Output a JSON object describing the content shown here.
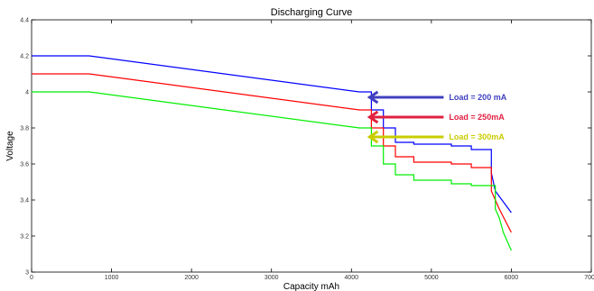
{
  "chart_data": {
    "type": "line",
    "title": "Discharging Curve",
    "xlabel": "Capacity mAh",
    "ylabel": "Voltage",
    "xlim": [
      0,
      7000
    ],
    "ylim": [
      3,
      4.4
    ],
    "xticks": [
      0,
      1000,
      2000,
      3000,
      4000,
      5000,
      6000,
      7000
    ],
    "yticks": [
      3,
      3.2,
      3.4,
      3.6,
      3.8,
      4,
      4.2,
      4.4
    ],
    "xtick_labels": [
      "0",
      "1000",
      "2000",
      "3000",
      "4000",
      "5000",
      "6000",
      "7000"
    ],
    "ytick_labels": [
      "3",
      "3.2",
      "3.4",
      "3.6",
      "3.8",
      "4",
      "4.2",
      "4.4"
    ],
    "grid": false,
    "series": [
      {
        "color": "#0000ff",
        "x": [
          0,
          720,
          4100,
          4250,
          4250,
          4400,
          4400,
          4550,
          4550,
          4780,
          4780,
          5250,
          5250,
          5500,
          5500,
          5750,
          5750,
          5800,
          5850,
          6000
        ],
        "y": [
          4.2,
          4.2,
          4.0,
          4.0,
          3.9,
          3.9,
          3.8,
          3.8,
          3.72,
          3.72,
          3.71,
          3.71,
          3.7,
          3.7,
          3.68,
          3.68,
          3.55,
          3.45,
          3.42,
          3.33
        ]
      },
      {
        "color": "#ff0000",
        "x": [
          0,
          720,
          4100,
          4250,
          4250,
          4400,
          4400,
          4550,
          4550,
          4780,
          4780,
          5250,
          5250,
          5500,
          5500,
          5750,
          5750,
          5800,
          5850,
          6000
        ],
        "y": [
          4.1,
          4.1,
          3.9,
          3.9,
          3.8,
          3.8,
          3.7,
          3.7,
          3.64,
          3.64,
          3.61,
          3.61,
          3.6,
          3.6,
          3.58,
          3.58,
          3.45,
          3.4,
          3.35,
          3.22
        ]
      },
      {
        "color": "#00ee00",
        "x": [
          0,
          720,
          4100,
          4250,
          4250,
          4400,
          4400,
          4550,
          4550,
          4780,
          4780,
          5250,
          5250,
          5500,
          5500,
          5800,
          5800,
          5850,
          5900,
          6000
        ],
        "y": [
          4.0,
          4.0,
          3.8,
          3.8,
          3.7,
          3.7,
          3.6,
          3.6,
          3.54,
          3.54,
          3.51,
          3.51,
          3.49,
          3.49,
          3.48,
          3.48,
          3.35,
          3.3,
          3.22,
          3.12
        ]
      }
    ],
    "annotations": [
      {
        "text": "Load = 200 mA",
        "color": "#4040c0",
        "x": 4250,
        "y": 3.97
      },
      {
        "text": "Load = 250mA",
        "color": "#e02040",
        "x": 4250,
        "y": 3.86
      },
      {
        "text": "Load = 300mA",
        "color": "#c8cc00",
        "x": 4250,
        "y": 3.75
      }
    ]
  }
}
